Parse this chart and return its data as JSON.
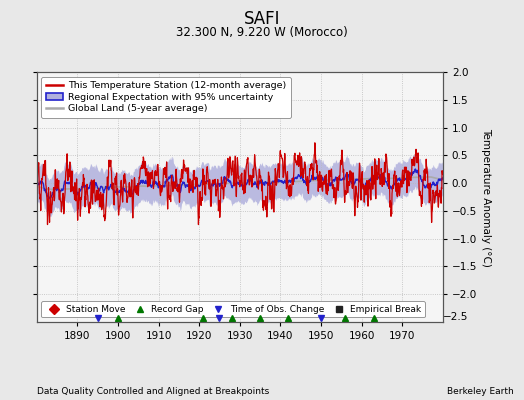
{
  "title": "SAFI",
  "subtitle": "32.300 N, 9.220 W (Morocco)",
  "ylabel": "Temperature Anomaly (°C)",
  "xlabel_left": "Data Quality Controlled and Aligned at Breakpoints",
  "xlabel_right": "Berkeley Earth",
  "xlim": [
    1880,
    1980
  ],
  "ylim": [
    -2.5,
    2.0
  ],
  "yticks": [
    -2.0,
    -1.5,
    -1.0,
    -0.5,
    0,
    0.5,
    1.0,
    1.5,
    2.0
  ],
  "xticks": [
    1890,
    1900,
    1910,
    1920,
    1930,
    1940,
    1950,
    1960,
    1970
  ],
  "station_color": "#cc0000",
  "regional_color": "#2222cc",
  "regional_fill_color": "#b0b0dd",
  "global_color": "#aaaaaa",
  "bg_color": "#e8e8e8",
  "plot_bg": "#f5f5f5",
  "seed": 12345,
  "start_year": 1880,
  "end_year": 1979,
  "marker_years_green": [
    1900,
    1921,
    1928,
    1935,
    1942,
    1956,
    1963
  ],
  "marker_years_blue": [
    1895,
    1925,
    1950
  ],
  "marker_years_red": [],
  "marker_years_black": []
}
